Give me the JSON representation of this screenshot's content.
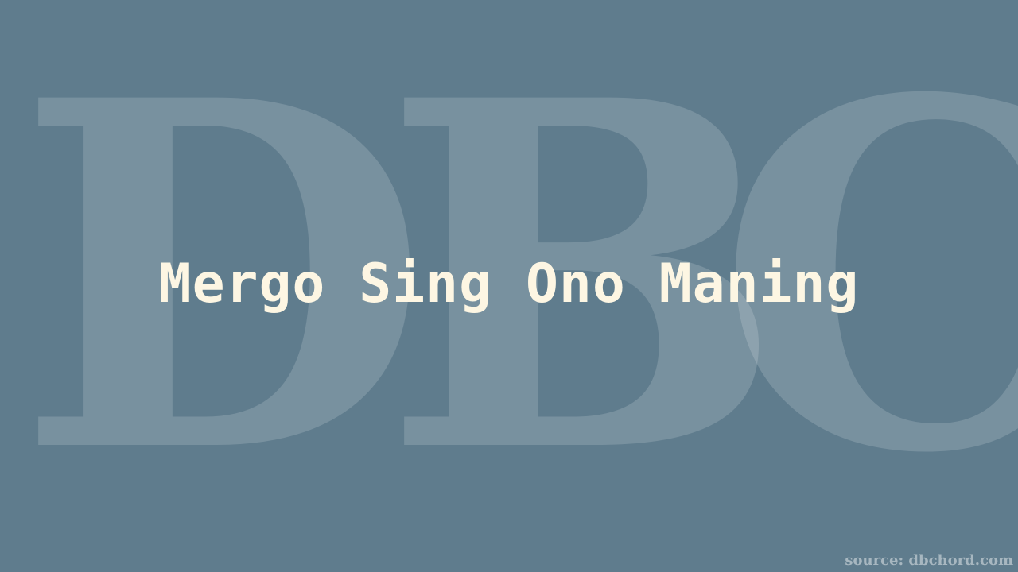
{
  "watermark": {
    "letters": [
      "D",
      "B",
      "C"
    ]
  },
  "title": "Mergo Sing Ono Maning",
  "source": "source: dbchord.com",
  "colors": {
    "background": "#5f7c8d",
    "title": "#fdf6e3"
  }
}
